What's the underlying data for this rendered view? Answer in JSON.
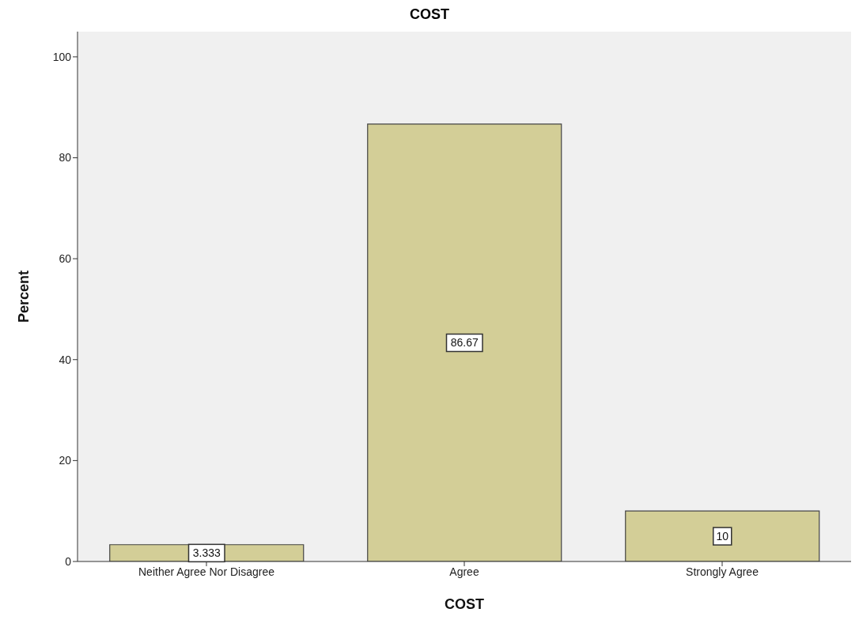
{
  "chart_data": {
    "type": "bar",
    "title": "COST",
    "xlabel": "COST",
    "ylabel": "Percent",
    "categories": [
      "Neither Agree Nor Disagree",
      "Agree",
      "Strongly Agree"
    ],
    "values": [
      3.333,
      86.67,
      10
    ],
    "color": "#d3ce97",
    "ylim": [
      0,
      105
    ],
    "yticks": [
      0,
      20,
      40,
      60,
      80,
      100
    ],
    "grid": false,
    "data_labels": true
  }
}
